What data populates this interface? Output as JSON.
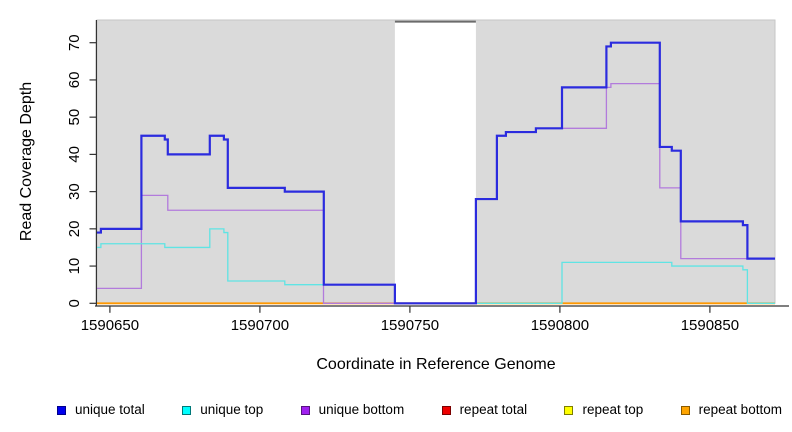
{
  "chart_data": {
    "type": "line",
    "style": "step-after",
    "title": "",
    "xlabel": "Coordinate in Reference Genome",
    "ylabel": "Read Coverage Depth",
    "xlim": [
      1590645.7,
      1590871.7
    ],
    "ylim": [
      0,
      76.1
    ],
    "x_ticks": [
      1590650,
      1590700,
      1590750,
      1590800,
      1590850
    ],
    "y_ticks": [
      0,
      10,
      20,
      30,
      40,
      50,
      60,
      70
    ],
    "grid": false,
    "panel_background": "#DADADA",
    "panel_border": "#C6C6C6",
    "axis_color": "#333333",
    "gap_region": {
      "x_start": 1590745,
      "x_end": 1590772,
      "fill": "#FFFFFF",
      "top_border": "#6B6B6B"
    },
    "series": [
      {
        "name": "repeat total",
        "color": "#DD0000",
        "width": 1.2,
        "steps": [
          [
            1590645.7,
            0
          ]
        ]
      },
      {
        "name": "repeat top",
        "color": "#FFFF00",
        "width": 1.2,
        "steps": [
          [
            1590645.7,
            0
          ]
        ]
      },
      {
        "name": "repeat bottom",
        "color": "#FF9800",
        "width": 1.8,
        "steps": [
          [
            1590645.7,
            0
          ]
        ]
      },
      {
        "name": "unique bottom",
        "color": "#B27BDC",
        "width": 1.3,
        "steps": [
          [
            1590645.7,
            4
          ],
          [
            1590660.5,
            29
          ],
          [
            1590669.3,
            25
          ],
          [
            1590721.2,
            0
          ],
          [
            1590772,
            28
          ],
          [
            1590779,
            45
          ],
          [
            1590782,
            46
          ],
          [
            1590792,
            47
          ],
          [
            1590815.5,
            58
          ],
          [
            1590817,
            59
          ],
          [
            1590833.3,
            31
          ],
          [
            1590840.3,
            12
          ]
        ]
      },
      {
        "name": "unique top",
        "color": "#5FE4E4",
        "width": 1.3,
        "steps": [
          [
            1590645.7,
            15
          ],
          [
            1590647,
            16
          ],
          [
            1590668.3,
            15
          ],
          [
            1590683.3,
            20
          ],
          [
            1590688,
            19
          ],
          [
            1590689.3,
            6
          ],
          [
            1590708.3,
            5
          ],
          [
            1590745,
            0
          ],
          [
            1590800.7,
            11
          ],
          [
            1590837.3,
            10
          ],
          [
            1590861,
            9
          ],
          [
            1590862.5,
            0
          ]
        ]
      },
      {
        "name": "unique total",
        "color": "#2B2BDE",
        "width": 2.2,
        "steps": [
          [
            1590645.7,
            19
          ],
          [
            1590647,
            20
          ],
          [
            1590660.5,
            45
          ],
          [
            1590668.3,
            44
          ],
          [
            1590669.3,
            40
          ],
          [
            1590683.3,
            45
          ],
          [
            1590688,
            44
          ],
          [
            1590689.3,
            31
          ],
          [
            1590708.3,
            30
          ],
          [
            1590721.3,
            5
          ],
          [
            1590745,
            0
          ],
          [
            1590772,
            28
          ],
          [
            1590779,
            45
          ],
          [
            1590782,
            46
          ],
          [
            1590792,
            47
          ],
          [
            1590800.7,
            58
          ],
          [
            1590815.5,
            69
          ],
          [
            1590817,
            70
          ],
          [
            1590833.3,
            42
          ],
          [
            1590837.3,
            41
          ],
          [
            1590840.3,
            22
          ],
          [
            1590861,
            21
          ],
          [
            1590862.5,
            12
          ]
        ]
      }
    ]
  },
  "axes": {
    "y_label": "Read Coverage Depth",
    "x_label": "Coordinate in Reference Genome"
  },
  "legend": {
    "items": [
      {
        "label": "unique total",
        "fill": "#0000EE",
        "border": "#00008B"
      },
      {
        "label": "unique top",
        "fill": "#00FFFF",
        "border": "#007878"
      },
      {
        "label": "unique bottom",
        "fill": "#A020F0",
        "border": "#571380"
      },
      {
        "label": "repeat total",
        "fill": "#EE0000",
        "border": "#7A0000"
      },
      {
        "label": "repeat top",
        "fill": "#FFFF00",
        "border": "#7E7E00"
      },
      {
        "label": "repeat bottom",
        "fill": "#FFA500",
        "border": "#8A5A00"
      }
    ]
  }
}
